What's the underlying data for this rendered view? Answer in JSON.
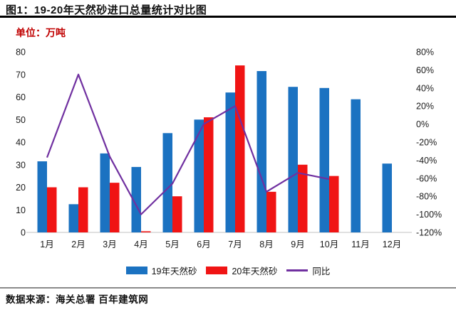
{
  "header": {
    "title": "图1：19-20年天然砂进口总量统计对比图",
    "unit_label": "单位：万吨"
  },
  "footer": {
    "source": "数据来源：海关总署 百年建筑网"
  },
  "colors": {
    "series_19": "#1b72c1",
    "series_20": "#f01414",
    "yoy_line": "#7030a0",
    "unit_label": "#c00000",
    "axis_baseline": "#d6d6d6"
  },
  "chart_data": {
    "type": "bar+line",
    "title": "图1：19-20年天然砂进口总量统计对比图",
    "unit": "万吨",
    "categories": [
      "1月",
      "2月",
      "3月",
      "4月",
      "5月",
      "6月",
      "7月",
      "8月",
      "9月",
      "10月",
      "11月",
      "12月"
    ],
    "series": [
      {
        "name": "19年天然砂",
        "type": "bar",
        "axis": "left",
        "values": [
          31.5,
          12.5,
          35,
          29,
          44,
          50,
          62,
          71.5,
          64.5,
          64,
          59,
          30.5
        ]
      },
      {
        "name": "20年天然砂",
        "type": "bar",
        "axis": "left",
        "values": [
          20,
          20,
          22,
          0.5,
          16,
          51,
          74,
          18,
          30,
          25,
          null,
          null
        ]
      },
      {
        "name": "同比",
        "type": "line",
        "axis": "right",
        "values": [
          -37,
          55,
          -36,
          -100,
          -66,
          0,
          20,
          -75,
          -54,
          -61,
          null,
          null
        ]
      }
    ],
    "left_axis": {
      "label": "万吨",
      "min": 0,
      "max": 80,
      "step": 10,
      "ticks": [
        0,
        10,
        20,
        30,
        40,
        50,
        60,
        70,
        80
      ]
    },
    "right_axis": {
      "min": -120,
      "max": 80,
      "step": 20,
      "format": "percent",
      "ticks": [
        "80%",
        "60%",
        "40%",
        "20%",
        "0%",
        "-20%",
        "-40%",
        "-60%",
        "-80%",
        "-100%",
        "-120%"
      ]
    },
    "grid": false,
    "legend_position": "bottom"
  }
}
